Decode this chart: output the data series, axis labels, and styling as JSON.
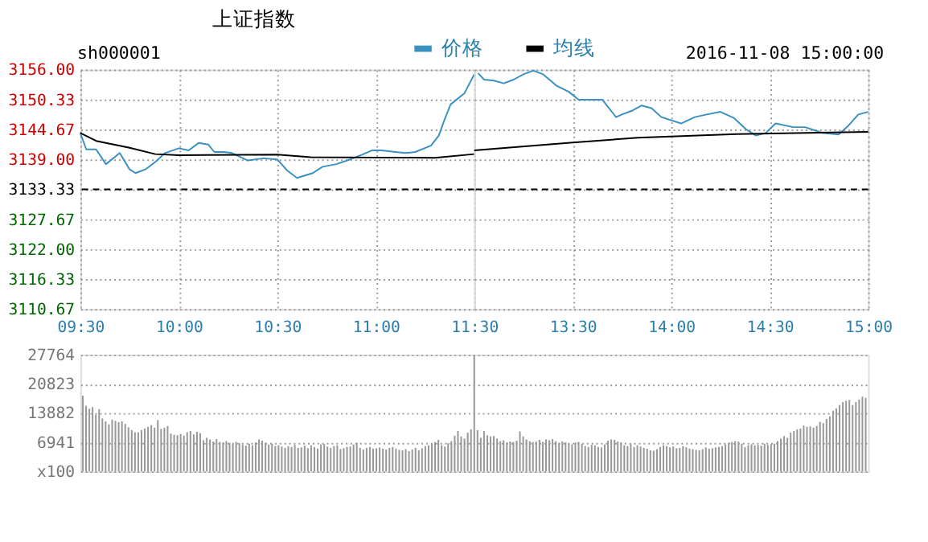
{
  "chart_data": [
    {
      "type": "line",
      "title": "上证指数",
      "annotations": [
        "sh000001"
      ],
      "legend": "top",
      "grid": true,
      "series": [
        {
          "name": "价格",
          "color": "#3a90c0",
          "x": [
            9.5,
            9.53,
            9.58,
            9.63,
            9.7,
            9.75,
            9.78,
            9.83,
            9.88,
            9.93,
            10.0,
            10.05,
            10.1,
            10.15,
            10.18,
            10.23,
            10.27,
            10.35,
            10.43,
            10.5,
            10.55,
            10.6,
            10.68,
            10.73,
            10.8,
            10.87,
            10.93,
            10.98,
            11.03,
            11.1,
            11.15,
            11.2,
            11.28,
            11.32,
            11.35,
            11.38,
            11.45,
            11.5
          ],
          "values": [
            3144.0,
            3140.9,
            3140.9,
            3138.1,
            3140.2,
            3137.1,
            3136.4,
            3137.1,
            3138.5,
            3140.2,
            3141.1,
            3140.7,
            3142.1,
            3141.8,
            3140.4,
            3140.4,
            3140.2,
            3138.8,
            3139.2,
            3139.0,
            3136.9,
            3135.5,
            3136.4,
            3137.6,
            3138.1,
            3139.0,
            3139.9,
            3140.7,
            3140.7,
            3140.4,
            3140.2,
            3140.4,
            3141.6,
            3143.5,
            3146.6,
            3149.4,
            3151.5,
            3155.1
          ]
        },
        {
          "name": "均线",
          "color": "#000000",
          "x": [
            9.5,
            9.58,
            9.75,
            9.88,
            10.0,
            10.5,
            10.67,
            11.3,
            11.5
          ],
          "values": [
            3144.0,
            3142.5,
            3141.2,
            3140.0,
            3139.8,
            3139.9,
            3139.4,
            3139.3,
            3140.0
          ]
        }
      ],
      "xlim": [
        9.5,
        11.5
      ],
      "xticks": [
        {
          "value": 9.5,
          "label": "09:30"
        },
        {
          "value": 10.0,
          "label": "10:00"
        },
        {
          "value": 10.5,
          "label": "10:30"
        },
        {
          "value": 11.0,
          "label": "11:00"
        },
        {
          "value": 11.5,
          "label": "11:30"
        }
      ],
      "ylim": [
        3110.67,
        3156.0
      ],
      "yticks": [
        3110.67,
        3116.33,
        {
          "value": 3122.0,
          "label": "3122.00"
        },
        3127.67,
        3133.33,
        {
          "value": 3139.0,
          "label": "3139.00"
        },
        3144.67,
        3150.33,
        {
          "value": 3156.0,
          "label": "3156.00"
        }
      ],
      "ref_lines": [
        {
          "axis": "y",
          "value": 3133.33,
          "color": "#000000",
          "line_style": "dashed"
        }
      ]
    },
    {
      "type": "line",
      "annotations": [
        "2016-11-08 15:00:00"
      ],
      "grid": true,
      "tick_labels": "x",
      "series": [
        {
          "color": "#3a90c0",
          "x": [
            13.02,
            13.05,
            13.1,
            13.15,
            13.2,
            13.25,
            13.3,
            13.35,
            13.42,
            13.48,
            13.53,
            13.6,
            13.65,
            13.72,
            13.75,
            13.8,
            13.85,
            13.9,
            13.95,
            14.05,
            14.12,
            14.18,
            14.25,
            14.32,
            14.38,
            14.43,
            14.48,
            14.53,
            14.62,
            14.68,
            14.77,
            14.85,
            14.9,
            14.95,
            15.0
          ],
          "values": [
            3155.3,
            3154.1,
            3153.9,
            3153.4,
            3154.1,
            3155.1,
            3155.8,
            3155.1,
            3152.9,
            3151.8,
            3150.3,
            3150.3,
            3150.3,
            3147.0,
            3147.5,
            3148.2,
            3149.2,
            3148.7,
            3147.0,
            3145.8,
            3147.0,
            3147.5,
            3148.0,
            3146.8,
            3144.7,
            3143.5,
            3144.0,
            3145.8,
            3145.1,
            3145.1,
            3144.0,
            3143.7,
            3145.4,
            3147.5,
            3148.0
          ]
        },
        {
          "color": "#000000",
          "x": [
            13.0,
            13.5,
            13.83,
            14.33,
            15.0
          ],
          "values": [
            3140.7,
            3142.2,
            3143.1,
            3143.8,
            3144.2
          ]
        }
      ],
      "xlim": [
        13.0,
        15.0
      ],
      "xticks": [
        {
          "value": 13.5,
          "label": "13:30"
        },
        {
          "value": 14.0,
          "label": "14:00"
        },
        {
          "value": 14.5,
          "label": "14:30"
        },
        {
          "value": 15.0,
          "label": "15:00"
        }
      ],
      "ylim": [
        3110.67,
        3156.0
      ],
      "yticks": [
        3110.67,
        3116.33,
        3122.0,
        3127.67,
        3133.33,
        3139.0,
        3144.67,
        3150.33,
        3156.0
      ],
      "ref_lines": [
        {
          "axis": "y",
          "value": 3133.33,
          "color": "#000000",
          "line_style": "dashed"
        }
      ]
    },
    {
      "type": "bar",
      "color": "#999999",
      "grid": "y",
      "tick_labels": "y",
      "categories": [
        null,
        null,
        null,
        null,
        null,
        null,
        null,
        null,
        null,
        null,
        null,
        null,
        null,
        null,
        null,
        null,
        null,
        null,
        null,
        null,
        null,
        null,
        null,
        null,
        null,
        null,
        null,
        null,
        null,
        null,
        null,
        null,
        null,
        null,
        null,
        null,
        null,
        null,
        null,
        null,
        null,
        null,
        null,
        null,
        null,
        null,
        null,
        null,
        null,
        null,
        null,
        null,
        null,
        null,
        null,
        null,
        null,
        null,
        null,
        null,
        null,
        null,
        null,
        null,
        null,
        null,
        null,
        null,
        null,
        null,
        null,
        null,
        null,
        null,
        null,
        null,
        null,
        null,
        null,
        null,
        null,
        null,
        null,
        null,
        null,
        null,
        null,
        null,
        null,
        null,
        null,
        null,
        null,
        null,
        null,
        null,
        null,
        null,
        null,
        null,
        null,
        null,
        null,
        null,
        null,
        null,
        null,
        null,
        null,
        null,
        null,
        null,
        null,
        null,
        null,
        null,
        null,
        null,
        null,
        null,
        null,
        null,
        null,
        null,
        null,
        null,
        null,
        null,
        null,
        null,
        null,
        null,
        null,
        null,
        null,
        null,
        null,
        null,
        null,
        null,
        null,
        null,
        null,
        null,
        null,
        null,
        null,
        null,
        null,
        null,
        null,
        null,
        null,
        null,
        null,
        null,
        null,
        null,
        null,
        null,
        null,
        null,
        null,
        null,
        null,
        null,
        null,
        null,
        null,
        null,
        null,
        null,
        null,
        null,
        null,
        null,
        null,
        null,
        null,
        null,
        null,
        null,
        null,
        null,
        null,
        null,
        null,
        null,
        null,
        null,
        null,
        null,
        null,
        null,
        null,
        null,
        null,
        null,
        null,
        null,
        null,
        null,
        null,
        null,
        null,
        null,
        null,
        null,
        null,
        null,
        null,
        null,
        null,
        null,
        null,
        null,
        null,
        null,
        null,
        null,
        null,
        null,
        null,
        null,
        null,
        null,
        null,
        null,
        null,
        null,
        null,
        null,
        null,
        null,
        null,
        null,
        null,
        null,
        null,
        null,
        null
      ],
      "values": [
        18000,
        15600,
        14900,
        15300,
        13500,
        14800,
        12600,
        11900,
        11200,
        12300,
        12000,
        11700,
        11900,
        11300,
        10500,
        9800,
        9300,
        9300,
        9800,
        10200,
        10600,
        11000,
        10400,
        12200,
        10100,
        10400,
        10800,
        9000,
        8700,
        8600,
        8900,
        8500,
        9300,
        9600,
        8800,
        9400,
        9100,
        7400,
        8000,
        7600,
        7100,
        7700,
        7000,
        6900,
        7200,
        6800,
        6500,
        7000,
        6700,
        6300,
        6100,
        6600,
        6200,
        6900,
        7600,
        7300,
        6800,
        6400,
        6600,
        6000,
        6200,
        5900,
        5600,
        6000,
        5800,
        6300,
        5600,
        5700,
        6100,
        5500,
        6200,
        5800,
        5400,
        6400,
        6500,
        5900,
        5600,
        6000,
        6200,
        5300,
        5500,
        5800,
        5900,
        6400,
        6800,
        5600,
        5200,
        5600,
        5800,
        5400,
        5500,
        5700,
        5400,
        5200,
        5600,
        5800,
        5400,
        5100,
        5000,
        5300,
        4800,
        5200,
        5600,
        5000,
        5500,
        6000,
        6200,
        6600,
        7000,
        7500,
        6200,
        5900,
        6700,
        7200,
        8500,
        9600,
        8300,
        7800,
        9200,
        10000,
        27764,
        9800,
        8000,
        9600,
        8600,
        8300,
        8400,
        7800,
        7200,
        7400,
        6900,
        7100,
        7000,
        7300,
        9500,
        8300,
        7600,
        7200,
        7000,
        7100,
        7500,
        7000,
        7600,
        7400,
        7700,
        7200,
        6800,
        7100,
        6900,
        6600,
        6400,
        6900,
        7000,
        6500,
        6000,
        5800,
        6300,
        6200,
        5800,
        5700,
        6400,
        7300,
        7600,
        7500,
        7100,
        6900,
        6200,
        6000,
        6500,
        5800,
        6200,
        5900,
        5600,
        5400,
        5000,
        4900,
        5300,
        5800,
        6200,
        6000,
        5700,
        5900,
        5500,
        5600,
        6000,
        5700,
        5400,
        5300,
        5100,
        5000,
        5300,
        5700,
        5400,
        5500,
        5700,
        5800,
        6000,
        6400,
        6800,
        7000,
        7200,
        7100,
        6600,
        5800,
        6200,
        6400,
        6200,
        6300,
        6100,
        6600,
        6300,
        6500,
        6600,
        7200,
        7800,
        8400,
        8000,
        9200,
        9600,
        10000,
        10200,
        10900,
        10600,
        10700,
        10400,
        10800,
        11800,
        11500,
        12500,
        13100,
        14400,
        15000,
        15800,
        16500,
        16800,
        17000,
        15800,
        16500,
        17100,
        17800,
        17500
      ],
      "ylim": [
        0,
        27764
      ],
      "yticks": [
        {
          "value": 0,
          "label": "x100"
        },
        6941,
        13882,
        20823,
        27764
      ]
    }
  ]
}
